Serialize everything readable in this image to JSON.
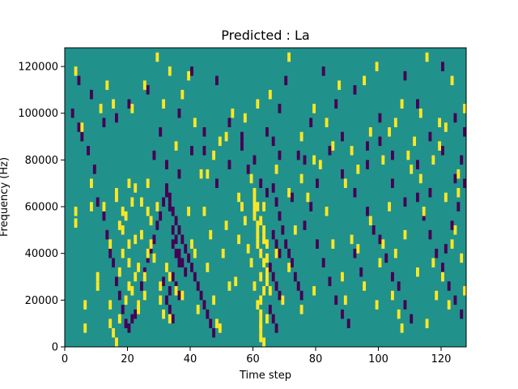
{
  "chart_data": {
    "type": "heatmap",
    "title": "Predicted : La",
    "xlabel": "Time step",
    "ylabel": "Frequency (Hz)",
    "xlim": [
      0,
      128
    ],
    "ylim": [
      0,
      128000
    ],
    "xticks": [
      0,
      20,
      40,
      60,
      80,
      100,
      120
    ],
    "yticks": [
      0,
      20000,
      40000,
      60000,
      80000,
      100000,
      120000
    ],
    "xtick_labels": [
      "0",
      "20",
      "40",
      "60",
      "80",
      "100",
      "120"
    ],
    "ytick_labels": [
      "0",
      "20000",
      "40000",
      "60000",
      "80000",
      "100000",
      "120000"
    ],
    "colormap": "viridis",
    "colors": {
      "low": "#440154",
      "mid": "#21918c",
      "high": "#fde725"
    },
    "grid": false,
    "background_value": "mid",
    "y_bin_hz": 2000,
    "x_bin": 1,
    "high_cells": [
      [
        3,
        118
      ],
      [
        3,
        58
      ],
      [
        3,
        53
      ],
      [
        5,
        94
      ],
      [
        6,
        8
      ],
      [
        6,
        18
      ],
      [
        8,
        60
      ],
      [
        8,
        70
      ],
      [
        10,
        26
      ],
      [
        10,
        30
      ],
      [
        11,
        102
      ],
      [
        12,
        60
      ],
      [
        13,
        112
      ],
      [
        14,
        44
      ],
      [
        16,
        64
      ],
      [
        16,
        66
      ],
      [
        17,
        32
      ],
      [
        17,
        12
      ],
      [
        18,
        58
      ],
      [
        18,
        50
      ],
      [
        19,
        56
      ],
      [
        20,
        70
      ],
      [
        20,
        44
      ],
      [
        20,
        26
      ],
      [
        21,
        24
      ],
      [
        22,
        46
      ],
      [
        22,
        30
      ],
      [
        23,
        18
      ],
      [
        23,
        16
      ],
      [
        24,
        62
      ],
      [
        25,
        22
      ],
      [
        26,
        70
      ],
      [
        26,
        40
      ],
      [
        27,
        54
      ],
      [
        28,
        38
      ],
      [
        29,
        60
      ],
      [
        30,
        26
      ],
      [
        30,
        20
      ],
      [
        31,
        14
      ],
      [
        32,
        34
      ],
      [
        33,
        30
      ],
      [
        33,
        12
      ],
      [
        35,
        24
      ],
      [
        37,
        22
      ],
      [
        39,
        58
      ],
      [
        40,
        44
      ],
      [
        41,
        40
      ],
      [
        42,
        16
      ],
      [
        43,
        74
      ],
      [
        44,
        58
      ],
      [
        45,
        34
      ],
      [
        46,
        48
      ],
      [
        47,
        20
      ],
      [
        48,
        10
      ],
      [
        49,
        8
      ],
      [
        50,
        40
      ],
      [
        51,
        52
      ],
      [
        52,
        26
      ],
      [
        54,
        28
      ],
      [
        55,
        46
      ],
      [
        56,
        60
      ],
      [
        57,
        54
      ],
      [
        58,
        42
      ],
      [
        59,
        36
      ],
      [
        60,
        66
      ],
      [
        60,
        62
      ],
      [
        60,
        58
      ],
      [
        61,
        52
      ],
      [
        61,
        48
      ],
      [
        61,
        44
      ],
      [
        62,
        40
      ],
      [
        62,
        30
      ],
      [
        62,
        20
      ],
      [
        62,
        14
      ],
      [
        62,
        8
      ],
      [
        62,
        4
      ],
      [
        63,
        60
      ],
      [
        63,
        50
      ],
      [
        63,
        36
      ],
      [
        63,
        24
      ],
      [
        64,
        44
      ],
      [
        64,
        32
      ],
      [
        64,
        12
      ],
      [
        65,
        24
      ],
      [
        67,
        40
      ],
      [
        69,
        20
      ],
      [
        71,
        34
      ],
      [
        73,
        50
      ],
      [
        75,
        16
      ],
      [
        77,
        64
      ],
      [
        79,
        24
      ],
      [
        81,
        78
      ],
      [
        83,
        58
      ],
      [
        85,
        44
      ],
      [
        88,
        30
      ],
      [
        89,
        20
      ],
      [
        91,
        46
      ],
      [
        93,
        42
      ],
      [
        95,
        26
      ],
      [
        97,
        54
      ],
      [
        99,
        18
      ],
      [
        100,
        36
      ],
      [
        101,
        44
      ],
      [
        103,
        60
      ],
      [
        104,
        22
      ],
      [
        105,
        40
      ],
      [
        106,
        14
      ],
      [
        107,
        8
      ],
      [
        108,
        48
      ],
      [
        110,
        76
      ],
      [
        112,
        32
      ],
      [
        113,
        72
      ],
      [
        114,
        58
      ],
      [
        115,
        10
      ],
      [
        117,
        36
      ],
      [
        118,
        22
      ],
      [
        119,
        86
      ],
      [
        120,
        30
      ],
      [
        121,
        64
      ],
      [
        122,
        18
      ],
      [
        123,
        44
      ],
      [
        124,
        50
      ],
      [
        125,
        66
      ],
      [
        126,
        38
      ],
      [
        127,
        24
      ],
      [
        14,
        18
      ],
      [
        14,
        10
      ],
      [
        15,
        6
      ],
      [
        16,
        2
      ],
      [
        17,
        52
      ],
      [
        18,
        40
      ],
      [
        19,
        20
      ],
      [
        20,
        36
      ],
      [
        21,
        62
      ],
      [
        22,
        68
      ],
      [
        23,
        34
      ],
      [
        24,
        48
      ],
      [
        25,
        30
      ],
      [
        26,
        58
      ],
      [
        27,
        44
      ],
      [
        60,
        56
      ],
      [
        61,
        60
      ],
      [
        62,
        54
      ],
      [
        63,
        46
      ],
      [
        64,
        38
      ],
      [
        60,
        26
      ],
      [
        61,
        18
      ],
      [
        62,
        10
      ],
      [
        63,
        2
      ],
      [
        64,
        28
      ],
      [
        15,
        104
      ],
      [
        21,
        102
      ],
      [
        25,
        112
      ],
      [
        31,
        104
      ],
      [
        35,
        86
      ],
      [
        39,
        116
      ],
      [
        45,
        74
      ],
      [
        49,
        88
      ],
      [
        53,
        100
      ],
      [
        57,
        98
      ],
      [
        61,
        104
      ],
      [
        65,
        108
      ],
      [
        71,
        124
      ],
      [
        75,
        90
      ],
      [
        79,
        102
      ],
      [
        83,
        96
      ],
      [
        87,
        112
      ],
      [
        91,
        84
      ],
      [
        95,
        114
      ],
      [
        99,
        120
      ],
      [
        103,
        92
      ],
      [
        107,
        104
      ],
      [
        111,
        88
      ],
      [
        115,
        124
      ],
      [
        119,
        96
      ],
      [
        123,
        114
      ],
      [
        127,
        102
      ],
      [
        29,
        124
      ],
      [
        33,
        118
      ],
      [
        37,
        108
      ],
      [
        41,
        96
      ],
      [
        47,
        82
      ],
      [
        51,
        90
      ],
      [
        55,
        64
      ],
      [
        59,
        72
      ],
      [
        67,
        76
      ],
      [
        71,
        66
      ],
      [
        75,
        72
      ],
      [
        79,
        80
      ],
      [
        85,
        86
      ],
      [
        89,
        70
      ],
      [
        93,
        76
      ],
      [
        97,
        92
      ],
      [
        101,
        80
      ],
      [
        105,
        96
      ],
      [
        109,
        82
      ],
      [
        113,
        100
      ],
      [
        117,
        80
      ],
      [
        121,
        94
      ],
      [
        125,
        74
      ]
    ],
    "low_cells": [
      [
        2,
        100
      ],
      [
        4,
        94
      ],
      [
        5,
        90
      ],
      [
        7,
        84
      ],
      [
        9,
        76
      ],
      [
        10,
        62
      ],
      [
        12,
        56
      ],
      [
        13,
        48
      ],
      [
        14,
        40
      ],
      [
        15,
        36
      ],
      [
        16,
        28
      ],
      [
        17,
        22
      ],
      [
        18,
        16
      ],
      [
        19,
        10
      ],
      [
        20,
        8
      ],
      [
        21,
        12
      ],
      [
        22,
        14
      ],
      [
        23,
        18
      ],
      [
        24,
        26
      ],
      [
        25,
        32
      ],
      [
        26,
        38
      ],
      [
        27,
        42
      ],
      [
        28,
        46
      ],
      [
        29,
        52
      ],
      [
        30,
        56
      ],
      [
        31,
        62
      ],
      [
        32,
        66
      ],
      [
        33,
        64
      ],
      [
        34,
        58
      ],
      [
        35,
        54
      ],
      [
        36,
        50
      ],
      [
        37,
        46
      ],
      [
        38,
        42
      ],
      [
        39,
        38
      ],
      [
        40,
        34
      ],
      [
        41,
        30
      ],
      [
        42,
        26
      ],
      [
        43,
        22
      ],
      [
        44,
        18
      ],
      [
        45,
        14
      ],
      [
        46,
        10
      ],
      [
        47,
        6
      ],
      [
        34,
        44
      ],
      [
        35,
        40
      ],
      [
        36,
        36
      ],
      [
        34,
        30
      ],
      [
        35,
        26
      ],
      [
        36,
        22
      ],
      [
        33,
        16
      ],
      [
        34,
        12
      ],
      [
        32,
        68
      ],
      [
        33,
        60
      ],
      [
        34,
        50
      ],
      [
        35,
        46
      ],
      [
        36,
        40
      ],
      [
        37,
        36
      ],
      [
        38,
        32
      ],
      [
        32,
        20
      ],
      [
        33,
        24
      ],
      [
        31,
        28
      ],
      [
        66,
        68
      ],
      [
        67,
        62
      ],
      [
        68,
        56
      ],
      [
        69,
        50
      ],
      [
        70,
        44
      ],
      [
        71,
        40
      ],
      [
        72,
        36
      ],
      [
        73,
        30
      ],
      [
        74,
        26
      ],
      [
        75,
        22
      ],
      [
        66,
        48
      ],
      [
        67,
        44
      ],
      [
        68,
        40
      ],
      [
        65,
        34
      ],
      [
        66,
        30
      ],
      [
        67,
        26
      ],
      [
        68,
        22
      ],
      [
        65,
        16
      ],
      [
        66,
        12
      ],
      [
        67,
        8
      ],
      [
        76,
        52
      ],
      [
        78,
        60
      ],
      [
        80,
        44
      ],
      [
        82,
        36
      ],
      [
        84,
        28
      ],
      [
        86,
        20
      ],
      [
        88,
        14
      ],
      [
        90,
        10
      ],
      [
        92,
        40
      ],
      [
        94,
        32
      ],
      [
        96,
        58
      ],
      [
        98,
        50
      ],
      [
        100,
        46
      ],
      [
        102,
        38
      ],
      [
        104,
        30
      ],
      [
        106,
        26
      ],
      [
        108,
        18
      ],
      [
        110,
        12
      ],
      [
        112,
        64
      ],
      [
        114,
        56
      ],
      [
        116,
        48
      ],
      [
        118,
        40
      ],
      [
        120,
        34
      ],
      [
        122,
        26
      ],
      [
        124,
        20
      ],
      [
        126,
        14
      ],
      [
        127,
        70
      ],
      [
        125,
        60
      ],
      [
        123,
        52
      ],
      [
        121,
        42
      ],
      [
        4,
        114
      ],
      [
        8,
        108
      ],
      [
        12,
        96
      ],
      [
        16,
        98
      ],
      [
        20,
        104
      ],
      [
        26,
        110
      ],
      [
        30,
        92
      ],
      [
        36,
        100
      ],
      [
        40,
        118
      ],
      [
        44,
        84
      ],
      [
        48,
        114
      ],
      [
        52,
        96
      ],
      [
        56,
        90
      ],
      [
        60,
        80
      ],
      [
        64,
        92
      ],
      [
        66,
        88
      ],
      [
        68,
        102
      ],
      [
        70,
        114
      ],
      [
        74,
        82
      ],
      [
        78,
        96
      ],
      [
        82,
        118
      ],
      [
        86,
        104
      ],
      [
        88,
        90
      ],
      [
        92,
        110
      ],
      [
        96,
        86
      ],
      [
        100,
        98
      ],
      [
        104,
        82
      ],
      [
        108,
        116
      ],
      [
        112,
        104
      ],
      [
        116,
        90
      ],
      [
        120,
        120
      ],
      [
        124,
        98
      ],
      [
        127,
        92
      ],
      [
        28,
        82
      ],
      [
        32,
        78
      ],
      [
        36,
        74
      ],
      [
        40,
        84
      ],
      [
        44,
        92
      ],
      [
        48,
        70
      ],
      [
        52,
        78
      ],
      [
        56,
        86
      ],
      [
        58,
        76
      ],
      [
        62,
        70
      ],
      [
        64,
        66
      ],
      [
        68,
        82
      ],
      [
        72,
        64
      ],
      [
        76,
        80
      ],
      [
        80,
        70
      ],
      [
        84,
        84
      ],
      [
        88,
        74
      ],
      [
        92,
        66
      ],
      [
        96,
        78
      ],
      [
        100,
        88
      ],
      [
        104,
        70
      ],
      [
        108,
        62
      ],
      [
        112,
        78
      ],
      [
        116,
        66
      ],
      [
        120,
        84
      ],
      [
        124,
        72
      ],
      [
        126,
        80
      ]
    ]
  }
}
